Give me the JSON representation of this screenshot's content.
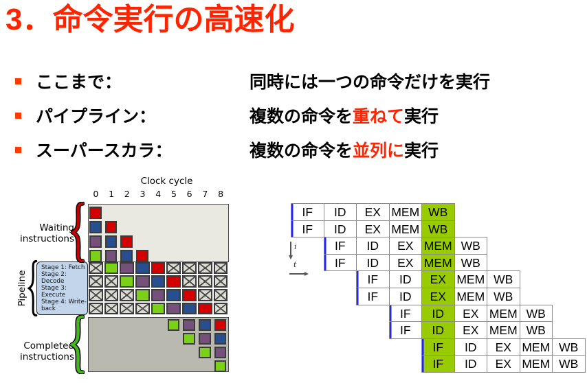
{
  "title": "3．命令実行の高速化",
  "bullets": [
    {
      "term": "ここまで：",
      "parts": [
        {
          "text": "同時には一つの命令だけを実行",
          "red": false
        }
      ]
    },
    {
      "term": "パイプライン：",
      "parts": [
        {
          "text": "複数の命令を",
          "red": false
        },
        {
          "text": "重ねて",
          "red": true
        },
        {
          "text": "実行",
          "red": false
        }
      ]
    },
    {
      "term": "スーパースカラ：",
      "parts": [
        {
          "text": "複数の命令を",
          "red": false
        },
        {
          "text": "並列に",
          "red": true
        },
        {
          "text": "実行",
          "red": false
        }
      ]
    }
  ],
  "pipeline_diagram": {
    "clock_label": "Clock cycle",
    "cycle_labels": [
      "0",
      "1",
      "2",
      "3",
      "4",
      "5",
      "6",
      "7",
      "8"
    ],
    "waiting_label_lines": [
      "Waiting",
      "instructions"
    ],
    "pipeline_label": "Pipeline",
    "stage_labels": [
      "Stage 1: Fetch",
      "Stage 2: Decode",
      "Stage 3: Execute",
      "Stage 4: Write-back"
    ],
    "completed_label_lines": [
      "Completed",
      "instructions"
    ],
    "waiting_grid": [
      [
        "R",
        ".",
        ".",
        ".",
        ".",
        ".",
        ".",
        ".",
        "."
      ],
      [
        "B",
        "R",
        ".",
        ".",
        ".",
        ".",
        ".",
        ".",
        "."
      ],
      [
        "P",
        "B",
        "R",
        ".",
        ".",
        ".",
        ".",
        ".",
        "."
      ],
      [
        "G",
        "P",
        "B",
        "R",
        ".",
        ".",
        ".",
        ".",
        "."
      ]
    ],
    "pipeline_grid": [
      [
        "X",
        "G",
        "P",
        "B",
        "R",
        "X",
        "X",
        "X",
        "X"
      ],
      [
        "X",
        "X",
        "G",
        "P",
        "B",
        "R",
        "X",
        "X",
        "X"
      ],
      [
        "X",
        "X",
        "X",
        "G",
        "P",
        "B",
        "R",
        "X",
        "X"
      ],
      [
        "X",
        "X",
        "X",
        "X",
        "G",
        "P",
        "B",
        "R",
        "X"
      ]
    ],
    "completed_grid": [
      [
        ".",
        ".",
        ".",
        ".",
        ".",
        "G",
        "P",
        "B",
        "R"
      ],
      [
        ".",
        ".",
        ".",
        ".",
        ".",
        ".",
        "G",
        "P",
        "B"
      ],
      [
        ".",
        ".",
        ".",
        ".",
        ".",
        ".",
        ".",
        "G",
        "P"
      ],
      [
        ".",
        ".",
        ".",
        ".",
        ".",
        ".",
        ".",
        ".",
        "G"
      ]
    ],
    "colors": {
      "R": "#d40000",
      "B": "#274e8f",
      "P": "#75507b",
      "G": "#7bd117"
    }
  },
  "superscalar_diagram": {
    "axis_i": "i",
    "axis_t": "t",
    "stages": [
      "IF",
      "ID",
      "EX",
      "MEM",
      "WB"
    ],
    "rows": [
      {
        "offset": 0,
        "highlight": "WB"
      },
      {
        "offset": 0,
        "highlight": "WB"
      },
      {
        "offset": 1,
        "highlight": "MEM"
      },
      {
        "offset": 1,
        "highlight": "MEM"
      },
      {
        "offset": 2,
        "highlight": "EX"
      },
      {
        "offset": 2,
        "highlight": "EX"
      },
      {
        "offset": 3,
        "highlight": "ID"
      },
      {
        "offset": 3,
        "highlight": "ID"
      },
      {
        "offset": 4,
        "highlight": "IF"
      },
      {
        "offset": 4,
        "highlight": "IF"
      }
    ],
    "highlight_color": "#99cc00",
    "issue_line_color": "#2323ff"
  },
  "colors": {
    "accent": "#ff2400",
    "marker": "#ff3b00",
    "waiting_bg": "#e9e9e2",
    "completed_bg": "#b9b9b0",
    "stage_bg": "#c2d5eb",
    "x_fill": "#dbdbd4",
    "table_border": "#8a8a8a",
    "brace_red": "#c40000",
    "brace_green": "#44b71c"
  }
}
